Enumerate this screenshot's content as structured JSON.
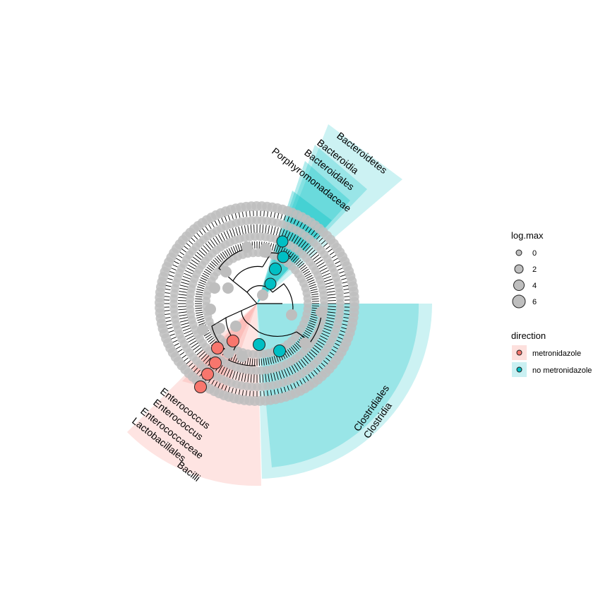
{
  "clades": [
    {
      "id": "bacteroidetes",
      "label": "Bacteroidetes",
      "direction": "no metronidazole"
    },
    {
      "id": "bacteroidia",
      "label": "Bacteroidia",
      "direction": "no metronidazole"
    },
    {
      "id": "bacteroidales",
      "label": "Bacteroidales",
      "direction": "no metronidazole"
    },
    {
      "id": "porphyromonadaceae",
      "label": "Porphyromonadaceae",
      "direction": "no metronidazole"
    },
    {
      "id": "clostridiales",
      "label": "Clostridiales",
      "direction": "no metronidazole"
    },
    {
      "id": "clostridia",
      "label": "Clostridia",
      "direction": "no metronidazole"
    },
    {
      "id": "enterococcus-genus",
      "label": "Enterococcus",
      "direction": "metronidazole"
    },
    {
      "id": "enterococcus-species",
      "label": "Enterococcus",
      "direction": "metronidazole"
    },
    {
      "id": "enterococcaceae",
      "label": "Enterococcaceae",
      "direction": "metronidazole"
    },
    {
      "id": "lactobacillales",
      "label": "Lactobacillales",
      "direction": "metronidazole"
    },
    {
      "id": "bacilli",
      "label": "Bacilli",
      "direction": "metronidazole"
    }
  ],
  "legend": {
    "size": {
      "title": "log.max",
      "items": [
        {
          "label": "0",
          "value": 0
        },
        {
          "label": "2",
          "value": 2
        },
        {
          "label": "4",
          "value": 4
        },
        {
          "label": "6",
          "value": 6
        }
      ]
    },
    "direction": {
      "title": "direction",
      "items": [
        {
          "label": "metronidazole",
          "color": "#F8766D",
          "fill": "#FDE0DD"
        },
        {
          "label": "no metronidazole",
          "color": "#00BFC4",
          "fill": "#C9F0F2"
        }
      ]
    }
  },
  "colors": {
    "metronidazole": "#F8766D",
    "no_metronidazole": "#00BFC4",
    "node_gray": "#BEBEBE",
    "edge": "#000000"
  }
}
